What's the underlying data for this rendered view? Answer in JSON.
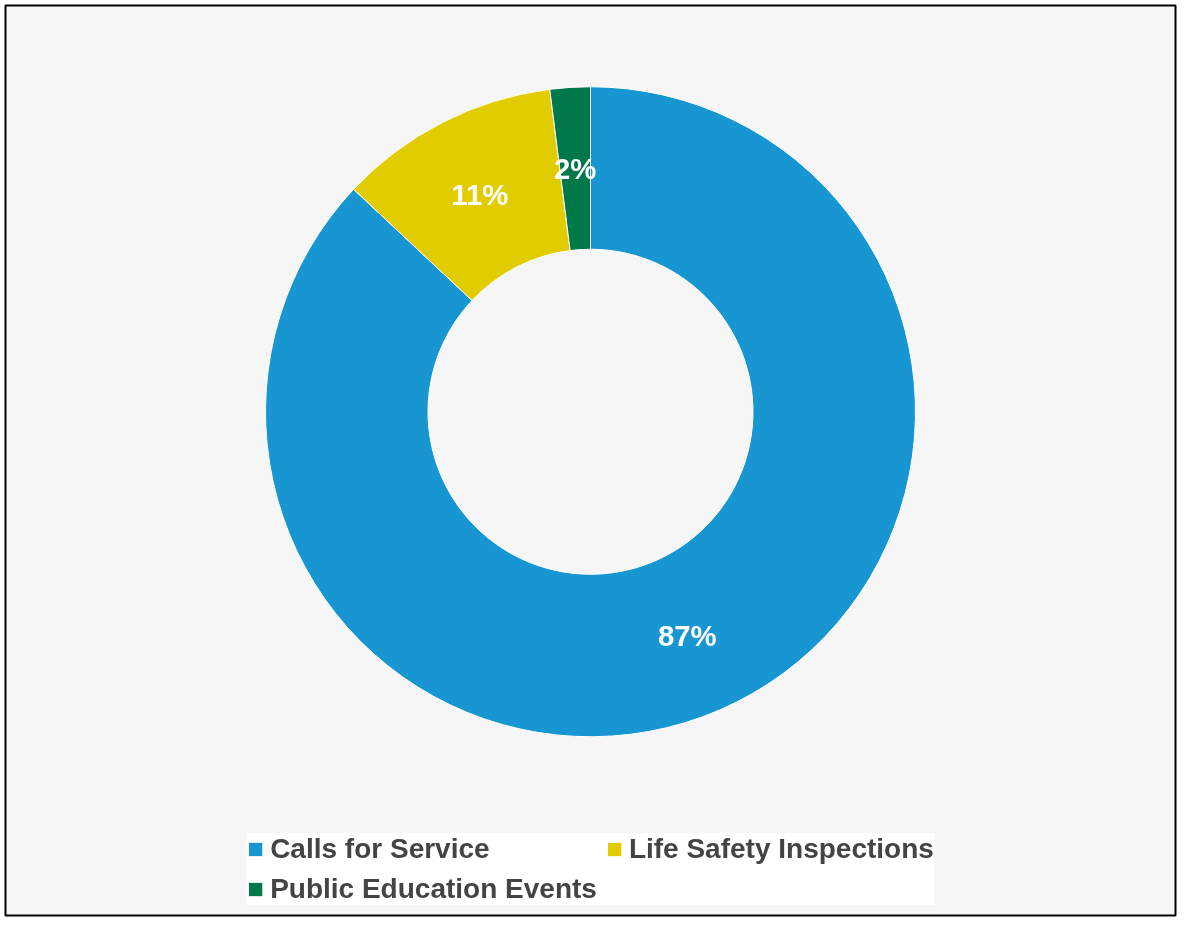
{
  "chart_data": {
    "type": "donut",
    "categories": [
      "Calls for Service",
      "Life Safety Inspections",
      "Public Education Events"
    ],
    "values": [
      87,
      11,
      2
    ],
    "colors": [
      "#1896d1",
      "#e1cc00",
      "#00784a"
    ],
    "value_labels": [
      "87%",
      "11%",
      "2%"
    ],
    "legend": "bottom"
  }
}
